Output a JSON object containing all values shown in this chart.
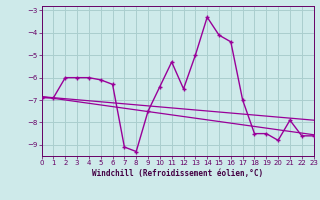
{
  "xlabel": "Windchill (Refroidissement éolien,°C)",
  "bg_color": "#ceeaea",
  "grid_color": "#aacece",
  "line_color": "#990099",
  "xlim": [
    0,
    23
  ],
  "ylim": [
    -9.5,
    -2.8
  ],
  "yticks": [
    -9,
    -8,
    -7,
    -6,
    -5,
    -4,
    -3
  ],
  "xticks": [
    0,
    1,
    2,
    3,
    4,
    5,
    6,
    7,
    8,
    9,
    10,
    11,
    12,
    13,
    14,
    15,
    16,
    17,
    18,
    19,
    20,
    21,
    22,
    23
  ],
  "hours": [
    0,
    1,
    2,
    3,
    4,
    5,
    6,
    7,
    8,
    9,
    10,
    11,
    12,
    13,
    14,
    15,
    16,
    17,
    18,
    19,
    20,
    21,
    22,
    23
  ],
  "windchill": [
    -6.9,
    -6.9,
    -6.0,
    -6.0,
    -6.0,
    -6.1,
    -6.3,
    -9.1,
    -9.3,
    -7.5,
    -6.4,
    -5.3,
    -6.5,
    -5.0,
    -3.3,
    -4.1,
    -4.4,
    -7.0,
    -8.5,
    -8.5,
    -8.8,
    -7.9,
    -8.6,
    -8.6
  ],
  "trend1_x": [
    0,
    23
  ],
  "trend1_y": [
    -6.85,
    -7.9
  ],
  "trend2_x": [
    0,
    23
  ],
  "trend2_y": [
    -6.85,
    -8.55
  ]
}
